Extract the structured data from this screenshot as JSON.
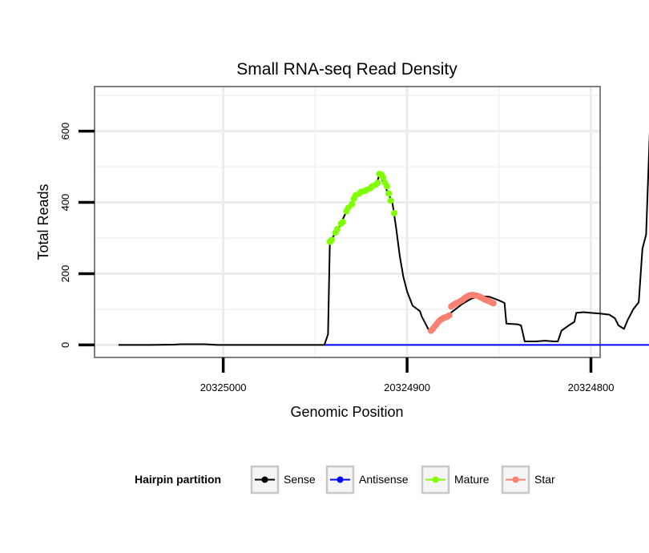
{
  "chart_data": {
    "type": "line",
    "title": "Small RNA-seq Read Density",
    "xlabel": "Genomic Position",
    "ylabel": "Total Reads",
    "x_axis_reversed": true,
    "xlim": [
      20325070,
      20324795
    ],
    "ylim": [
      -35,
      725
    ],
    "x_ticks": [
      20325000,
      20324900,
      20324800
    ],
    "x_tick_labels": [
      "20325000",
      "20324900",
      "20324800"
    ],
    "y_ticks": [
      0,
      200,
      400,
      600
    ],
    "y_tick_labels": [
      "0",
      "200",
      "400",
      "600"
    ],
    "grid": true,
    "legend": {
      "title": "Hairpin partition",
      "position": "bottom",
      "entries": [
        "Sense",
        "Antisense",
        "Mature",
        "Star"
      ]
    },
    "colors": {
      "Sense": "#000000",
      "Antisense": "#0000ff",
      "Mature": "#7fff00",
      "Star": "#fa8072"
    },
    "series": [
      {
        "name": "Sense",
        "type": "line",
        "points": [
          [
            20325057,
            0
          ],
          [
            20325040,
            0
          ],
          [
            20325027,
            1
          ],
          [
            20325023,
            2
          ],
          [
            20325010,
            2
          ],
          [
            20325003,
            0
          ],
          [
            20324950,
            0
          ],
          [
            20324945,
            0
          ],
          [
            20324943,
            30
          ],
          [
            20324942,
            290
          ],
          [
            20324937,
            330
          ],
          [
            20324933,
            375
          ],
          [
            20324928,
            415
          ],
          [
            20324922,
            435
          ],
          [
            20324917,
            445
          ],
          [
            20324915,
            480
          ],
          [
            20324912,
            445
          ],
          [
            20324908,
            400
          ],
          [
            20324906,
            330
          ],
          [
            20324904,
            250
          ],
          [
            20324902,
            190
          ],
          [
            20324900,
            150
          ],
          [
            20324897,
            110
          ],
          [
            20324893,
            95
          ],
          [
            20324892,
            80
          ],
          [
            20324890,
            60
          ],
          [
            20324888,
            40
          ],
          [
            20324885,
            55
          ],
          [
            20324880,
            75
          ],
          [
            20324875,
            95
          ],
          [
            20324870,
            115
          ],
          [
            20324865,
            130
          ],
          [
            20324860,
            137
          ],
          [
            20324855,
            135
          ],
          [
            20324850,
            125
          ],
          [
            20324847,
            118
          ],
          [
            20324846,
            60
          ],
          [
            20324840,
            58
          ],
          [
            20324838,
            55
          ],
          [
            20324836,
            10
          ],
          [
            20324830,
            10
          ],
          [
            20324825,
            12
          ],
          [
            20324820,
            10
          ],
          [
            20324818,
            10
          ],
          [
            20324816,
            40
          ],
          [
            20324812,
            55
          ],
          [
            20324809,
            65
          ],
          [
            20324808,
            90
          ],
          [
            20324804,
            92
          ],
          [
            20324800,
            90
          ],
          [
            20324795,
            88
          ],
          [
            20324790,
            85
          ],
          [
            20324787,
            75
          ],
          [
            20324785,
            55
          ],
          [
            20324782,
            45
          ],
          [
            20324780,
            70
          ],
          [
            20324777,
            100
          ],
          [
            20324774,
            120
          ],
          [
            20324772,
            270
          ],
          [
            20324770,
            310
          ],
          [
            20324768,
            600
          ],
          [
            20324767,
            710
          ],
          [
            20324765,
            710
          ],
          [
            20324756,
            705
          ],
          [
            20324754,
            670
          ],
          [
            20324753,
            650
          ],
          [
            20324752,
            400
          ],
          [
            20324751,
            5
          ],
          [
            20324749,
            0
          ],
          [
            20324744,
            0
          ]
        ]
      },
      {
        "name": "Antisense",
        "type": "line",
        "points": [
          [
            20324945,
            0
          ],
          [
            20324744,
            0
          ]
        ]
      },
      {
        "name": "Mature",
        "type": "points",
        "points": [
          [
            20324942,
            290
          ],
          [
            20324941,
            295
          ],
          [
            20324939,
            315
          ],
          [
            20324938,
            325
          ],
          [
            20324936,
            340
          ],
          [
            20324935,
            345
          ],
          [
            20324933,
            375
          ],
          [
            20324932,
            385
          ],
          [
            20324930,
            395
          ],
          [
            20324929,
            410
          ],
          [
            20324928,
            420
          ],
          [
            20324926,
            425
          ],
          [
            20324925,
            430
          ],
          [
            20324923,
            432
          ],
          [
            20324922,
            435
          ],
          [
            20324920,
            440
          ],
          [
            20324919,
            445
          ],
          [
            20324917,
            450
          ],
          [
            20324916,
            455
          ],
          [
            20324915,
            480
          ],
          [
            20324914,
            478
          ],
          [
            20324913,
            470
          ],
          [
            20324912,
            455
          ],
          [
            20324911,
            445
          ],
          [
            20324910,
            425
          ],
          [
            20324909,
            405
          ],
          [
            20324907,
            370
          ]
        ]
      },
      {
        "name": "Star",
        "type": "points",
        "points": [
          [
            20324887,
            40
          ],
          [
            20324886,
            45
          ],
          [
            20324885,
            52
          ],
          [
            20324884,
            58
          ],
          [
            20324883,
            65
          ],
          [
            20324882,
            70
          ],
          [
            20324881,
            73
          ],
          [
            20324880,
            76
          ],
          [
            20324879,
            78
          ],
          [
            20324878,
            80
          ],
          [
            20324877,
            83
          ],
          [
            20324876,
            108
          ],
          [
            20324875,
            112
          ],
          [
            20324874,
            115
          ],
          [
            20324873,
            118
          ],
          [
            20324872,
            120
          ],
          [
            20324871,
            123
          ],
          [
            20324870,
            126
          ],
          [
            20324869,
            130
          ],
          [
            20324868,
            134
          ],
          [
            20324867,
            137
          ],
          [
            20324866,
            139
          ],
          [
            20324865,
            140
          ],
          [
            20324864,
            140
          ],
          [
            20324863,
            139
          ],
          [
            20324862,
            138
          ],
          [
            20324861,
            136
          ],
          [
            20324860,
            134
          ],
          [
            20324859,
            131
          ],
          [
            20324858,
            128
          ],
          [
            20324857,
            126
          ],
          [
            20324856,
            124
          ],
          [
            20324855,
            122
          ],
          [
            20324854,
            119
          ],
          [
            20324853,
            117
          ]
        ]
      }
    ]
  }
}
